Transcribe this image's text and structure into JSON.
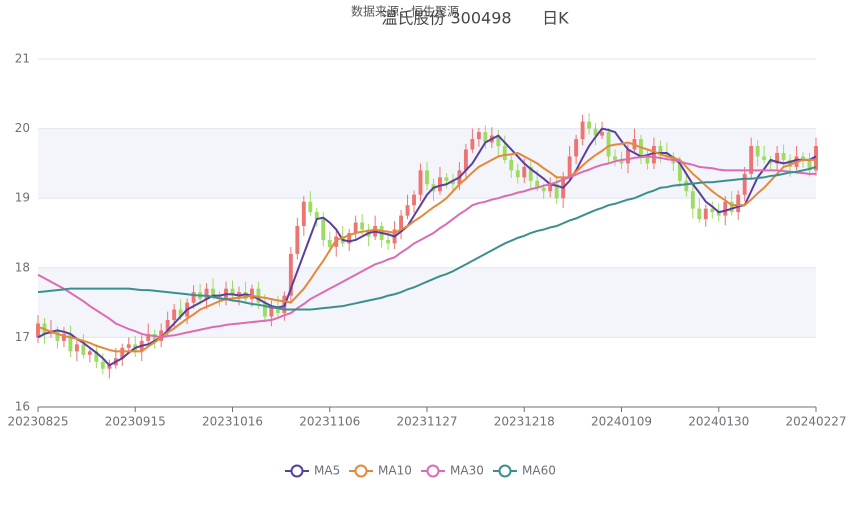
{
  "chart_data": {
    "type": "candlestick",
    "title": "温氏股份 300498      日K",
    "subtitle": "数据来源：恒生聚源",
    "categories": [
      "20230825",
      null,
      null,
      null,
      null,
      null,
      null,
      null,
      null,
      null,
      null,
      null,
      null,
      null,
      null,
      "20230915",
      null,
      null,
      null,
      null,
      null,
      null,
      null,
      null,
      null,
      null,
      null,
      null,
      null,
      null,
      "20231016",
      null,
      null,
      null,
      null,
      null,
      null,
      null,
      null,
      null,
      null,
      null,
      null,
      null,
      null,
      "20231106",
      null,
      null,
      null,
      null,
      null,
      null,
      null,
      null,
      null,
      null,
      null,
      null,
      null,
      null,
      "20231127",
      null,
      null,
      null,
      null,
      null,
      null,
      null,
      null,
      null,
      null,
      null,
      null,
      null,
      null,
      "20231218",
      null,
      null,
      null,
      null,
      null,
      null,
      null,
      null,
      null,
      null,
      null,
      null,
      null,
      null,
      "20240109",
      null,
      null,
      null,
      null,
      null,
      null,
      null,
      null,
      null,
      null,
      null,
      null,
      null,
      null,
      "20240130",
      null,
      null,
      null,
      null,
      null,
      null,
      null,
      null,
      null,
      null,
      null,
      null,
      null,
      null,
      "20240227"
    ],
    "open": [
      17.0,
      17.2,
      17.05,
      17.1,
      16.95,
      17.05,
      16.8,
      16.9,
      16.75,
      16.8,
      16.65,
      16.55,
      16.6,
      16.7,
      16.85,
      16.9,
      16.8,
      16.95,
      17.05,
      16.95,
      17.1,
      17.25,
      17.4,
      17.3,
      17.5,
      17.65,
      17.55,
      17.7,
      17.6,
      17.55,
      17.7,
      17.6,
      17.65,
      17.55,
      17.7,
      17.5,
      17.3,
      17.45,
      17.35,
      17.6,
      18.2,
      18.6,
      18.95,
      18.8,
      18.7,
      18.4,
      18.3,
      18.45,
      18.35,
      18.5,
      18.65,
      18.55,
      18.45,
      18.6,
      18.4,
      18.35,
      18.55,
      18.75,
      18.9,
      19.05,
      19.4,
      19.2,
      19.1,
      19.3,
      19.25,
      19.2,
      19.4,
      19.7,
      19.85,
      19.95,
      19.8,
      19.9,
      19.75,
      19.55,
      19.4,
      19.3,
      19.45,
      19.25,
      19.15,
      19.1,
      19.2,
      19.0,
      19.3,
      19.6,
      19.85,
      20.1,
      20.0,
      19.9,
      19.95,
      19.6,
      19.55,
      19.5,
      19.7,
      19.85,
      19.6,
      19.5,
      19.75,
      19.65,
      19.6,
      19.5,
      19.25,
      19.1,
      18.85,
      18.7,
      18.85,
      18.8,
      18.75,
      18.95,
      18.8,
      19.05,
      19.35,
      19.75,
      19.6,
      19.55,
      19.5,
      19.65,
      19.55,
      19.45,
      19.6,
      19.55,
      19.4
    ],
    "close": [
      17.2,
      17.05,
      17.1,
      16.95,
      17.05,
      16.8,
      16.9,
      16.75,
      16.8,
      16.65,
      16.55,
      16.6,
      16.7,
      16.85,
      16.9,
      16.8,
      16.95,
      17.05,
      16.95,
      17.1,
      17.25,
      17.4,
      17.3,
      17.5,
      17.65,
      17.55,
      17.7,
      17.6,
      17.55,
      17.7,
      17.6,
      17.65,
      17.55,
      17.7,
      17.5,
      17.3,
      17.45,
      17.35,
      17.6,
      18.2,
      18.6,
      18.95,
      18.8,
      18.7,
      18.4,
      18.3,
      18.45,
      18.35,
      18.5,
      18.65,
      18.55,
      18.45,
      18.6,
      18.4,
      18.35,
      18.55,
      18.75,
      18.9,
      19.05,
      19.4,
      19.2,
      19.1,
      19.3,
      19.25,
      19.2,
      19.4,
      19.7,
      19.85,
      19.95,
      19.8,
      19.9,
      19.75,
      19.55,
      19.4,
      19.3,
      19.45,
      19.25,
      19.15,
      19.1,
      19.2,
      19.0,
      19.3,
      19.6,
      19.85,
      20.1,
      20.0,
      19.9,
      19.95,
      19.6,
      19.55,
      19.5,
      19.7,
      19.85,
      19.6,
      19.5,
      19.75,
      19.65,
      19.6,
      19.5,
      19.25,
      19.1,
      18.85,
      18.7,
      18.85,
      18.8,
      18.75,
      18.95,
      18.8,
      19.05,
      19.35,
      19.75,
      19.6,
      19.55,
      19.5,
      19.65,
      19.55,
      19.45,
      19.6,
      19.55,
      19.4,
      19.75
    ],
    "low": [
      16.92,
      16.91,
      17.0,
      16.84,
      16.86,
      16.72,
      16.66,
      16.7,
      16.64,
      16.56,
      16.47,
      16.41,
      16.55,
      16.59,
      16.76,
      16.72,
      16.66,
      16.9,
      16.84,
      16.86,
      17.02,
      17.11,
      17.25,
      17.19,
      17.41,
      17.47,
      17.41,
      17.55,
      17.44,
      17.46,
      17.52,
      17.46,
      17.5,
      17.44,
      17.41,
      17.22,
      17.16,
      17.3,
      17.24,
      17.51,
      18.12,
      18.46,
      18.75,
      18.59,
      18.31,
      18.22,
      18.16,
      18.3,
      18.24,
      18.41,
      18.47,
      18.31,
      18.4,
      18.29,
      18.26,
      18.27,
      18.41,
      18.7,
      18.79,
      18.96,
      19.12,
      18.96,
      19.05,
      19.14,
      19.11,
      19.12,
      19.26,
      19.65,
      19.74,
      19.71,
      19.72,
      19.61,
      19.5,
      19.29,
      19.21,
      19.22,
      19.11,
      19.1,
      18.99,
      19.01,
      18.92,
      18.86,
      19.25,
      19.49,
      19.76,
      19.92,
      19.76,
      19.85,
      19.49,
      19.46,
      19.42,
      19.36,
      19.65,
      19.49,
      19.41,
      19.42,
      19.51,
      19.55,
      19.39,
      19.16,
      19.02,
      18.71,
      18.65,
      18.59,
      18.71,
      18.67,
      18.61,
      18.75,
      18.69,
      18.96,
      19.27,
      19.46,
      19.5,
      19.39,
      19.41,
      19.47,
      19.31,
      19.4,
      19.44,
      19.31,
      19.32
    ],
    "high": [
      17.32,
      17.28,
      17.25,
      17.16,
      17.15,
      17.17,
      16.98,
      17.05,
      16.86,
      16.9,
      16.77,
      16.68,
      16.85,
      16.91,
      17.0,
      17.02,
      17.03,
      17.2,
      17.11,
      17.2,
      17.37,
      17.48,
      17.55,
      17.56,
      17.75,
      17.77,
      17.78,
      17.85,
      17.66,
      17.8,
      17.82,
      17.73,
      17.8,
      17.76,
      17.8,
      17.62,
      17.53,
      17.6,
      17.66,
      18.3,
      18.72,
      19.03,
      19.1,
      18.86,
      18.8,
      18.52,
      18.53,
      18.6,
      18.56,
      18.75,
      18.77,
      18.63,
      18.75,
      18.66,
      18.5,
      18.67,
      18.83,
      19.05,
      19.11,
      19.5,
      19.52,
      19.28,
      19.45,
      19.36,
      19.35,
      19.52,
      19.78,
      20.0,
      20.01,
      20.05,
      20.02,
      19.98,
      19.9,
      19.61,
      19.5,
      19.57,
      19.53,
      19.4,
      19.21,
      19.3,
      19.32,
      19.38,
      19.75,
      19.91,
      20.2,
      20.22,
      20.08,
      20.1,
      20.01,
      19.7,
      19.67,
      19.78,
      20.0,
      19.91,
      19.7,
      19.87,
      19.83,
      19.8,
      19.66,
      19.6,
      19.37,
      19.18,
      19.0,
      18.91,
      18.95,
      18.92,
      19.03,
      19.1,
      19.11,
      19.45,
      19.87,
      19.83,
      19.75,
      19.61,
      19.75,
      19.77,
      19.63,
      19.75,
      19.66,
      19.65,
      19.87
    ],
    "up_color": "#ee7373",
    "down_color": "#9ddb63",
    "series": [
      {
        "name": "MA5",
        "color": "#5b3f9e",
        "values": [
          17.0,
          17.05,
          17.08,
          17.1,
          17.08,
          17.05,
          16.98,
          16.92,
          16.85,
          16.78,
          16.7,
          16.6,
          16.65,
          16.7,
          16.78,
          16.85,
          16.88,
          16.9,
          16.95,
          17.0,
          17.1,
          17.2,
          17.3,
          17.4,
          17.45,
          17.5,
          17.55,
          17.6,
          17.6,
          17.62,
          17.62,
          17.6,
          17.62,
          17.6,
          17.55,
          17.5,
          17.45,
          17.43,
          17.45,
          17.7,
          17.95,
          18.2,
          18.45,
          18.7,
          18.72,
          18.65,
          18.55,
          18.4,
          18.38,
          18.4,
          18.45,
          18.5,
          18.52,
          18.5,
          18.48,
          18.45,
          18.52,
          18.6,
          18.75,
          18.9,
          19.05,
          19.15,
          19.18,
          19.2,
          19.25,
          19.3,
          19.4,
          19.5,
          19.65,
          19.8,
          19.85,
          19.9,
          19.8,
          19.7,
          19.6,
          19.5,
          19.42,
          19.35,
          19.28,
          19.2,
          19.18,
          19.15,
          19.25,
          19.4,
          19.58,
          19.75,
          19.88,
          20.0,
          19.98,
          19.95,
          19.82,
          19.7,
          19.65,
          19.6,
          19.62,
          19.65,
          19.65,
          19.65,
          19.58,
          19.5,
          19.35,
          19.2,
          19.08,
          18.95,
          18.88,
          18.8,
          18.82,
          18.85,
          18.88,
          18.9,
          19.1,
          19.3,
          19.42,
          19.55,
          19.52,
          19.5,
          19.52,
          19.55,
          19.55,
          19.55,
          19.6
        ]
      },
      {
        "name": "MA10",
        "color": "#e5883a",
        "values": [
          17.15,
          17.12,
          17.08,
          17.05,
          17.02,
          17.0,
          16.98,
          16.95,
          16.92,
          16.88,
          16.85,
          16.82,
          16.8,
          16.8,
          16.8,
          16.8,
          16.8,
          16.87,
          16.93,
          17.0,
          17.07,
          17.13,
          17.2,
          17.27,
          17.33,
          17.4,
          17.44,
          17.48,
          17.52,
          17.55,
          17.56,
          17.57,
          17.58,
          17.6,
          17.58,
          17.57,
          17.55,
          17.53,
          17.52,
          17.5,
          17.6,
          17.7,
          17.83,
          17.97,
          18.1,
          18.25,
          18.4,
          18.43,
          18.47,
          18.5,
          18.52,
          18.53,
          18.55,
          18.53,
          18.52,
          18.5,
          18.55,
          18.6,
          18.67,
          18.73,
          18.8,
          18.87,
          18.93,
          19.0,
          19.1,
          19.2,
          19.28,
          19.37,
          19.45,
          19.5,
          19.55,
          19.6,
          19.62,
          19.63,
          19.65,
          19.6,
          19.55,
          19.5,
          19.43,
          19.37,
          19.3,
          19.3,
          19.3,
          19.38,
          19.47,
          19.55,
          19.62,
          19.68,
          19.75,
          19.77,
          19.78,
          19.8,
          19.77,
          19.73,
          19.7,
          19.67,
          19.63,
          19.6,
          19.58,
          19.55,
          19.45,
          19.35,
          19.27,
          19.18,
          19.1,
          19.03,
          18.97,
          18.9,
          18.9,
          18.9,
          18.98,
          19.07,
          19.15,
          19.25,
          19.35,
          19.45,
          19.48,
          19.52,
          19.55,
          19.55,
          19.55
        ]
      },
      {
        "name": "MA30",
        "color": "#db6cb2",
        "values": [
          17.9,
          17.85,
          17.8,
          17.75,
          17.7,
          17.64,
          17.58,
          17.52,
          17.45,
          17.39,
          17.33,
          17.27,
          17.2,
          17.16,
          17.12,
          17.09,
          17.05,
          17.03,
          17.02,
          17.0,
          17.02,
          17.03,
          17.05,
          17.07,
          17.09,
          17.11,
          17.13,
          17.15,
          17.16,
          17.18,
          17.19,
          17.2,
          17.21,
          17.22,
          17.23,
          17.24,
          17.25,
          17.28,
          17.32,
          17.35,
          17.42,
          17.48,
          17.55,
          17.6,
          17.65,
          17.7,
          17.75,
          17.8,
          17.85,
          17.9,
          17.95,
          18.0,
          18.05,
          18.08,
          18.12,
          18.15,
          18.22,
          18.28,
          18.35,
          18.4,
          18.45,
          18.5,
          18.57,
          18.63,
          18.7,
          18.77,
          18.83,
          18.9,
          18.93,
          18.95,
          18.98,
          19.0,
          19.03,
          19.05,
          19.08,
          19.1,
          19.13,
          19.15,
          19.18,
          19.2,
          19.23,
          19.27,
          19.3,
          19.34,
          19.38,
          19.41,
          19.45,
          19.48,
          19.5,
          19.53,
          19.55,
          19.56,
          19.58,
          19.59,
          19.6,
          19.59,
          19.58,
          19.56,
          19.55,
          19.53,
          19.5,
          19.48,
          19.45,
          19.44,
          19.43,
          19.41,
          19.4,
          19.4,
          19.4,
          19.4,
          19.4,
          19.4,
          19.4,
          19.4,
          19.4,
          19.39,
          19.38,
          19.37,
          19.36,
          19.35,
          19.35
        ]
      },
      {
        "name": "MA60",
        "color": "#3b8f8e",
        "values": [
          17.65,
          17.66,
          17.67,
          17.68,
          17.69,
          17.7,
          17.7,
          17.7,
          17.7,
          17.7,
          17.7,
          17.7,
          17.7,
          17.7,
          17.7,
          17.69,
          17.68,
          17.68,
          17.67,
          17.66,
          17.65,
          17.64,
          17.63,
          17.62,
          17.61,
          17.6,
          17.6,
          17.58,
          17.56,
          17.55,
          17.53,
          17.52,
          17.5,
          17.48,
          17.47,
          17.45,
          17.43,
          17.42,
          17.4,
          17.4,
          17.4,
          17.4,
          17.4,
          17.41,
          17.42,
          17.43,
          17.44,
          17.45,
          17.47,
          17.49,
          17.51,
          17.53,
          17.55,
          17.57,
          17.6,
          17.62,
          17.65,
          17.69,
          17.72,
          17.76,
          17.8,
          17.84,
          17.88,
          17.91,
          17.95,
          18.0,
          18.05,
          18.1,
          18.15,
          18.2,
          18.25,
          18.3,
          18.35,
          18.39,
          18.43,
          18.46,
          18.5,
          18.53,
          18.55,
          18.58,
          18.6,
          18.64,
          18.68,
          18.71,
          18.75,
          18.79,
          18.83,
          18.86,
          18.9,
          18.92,
          18.95,
          18.98,
          19.0,
          19.04,
          19.08,
          19.11,
          19.15,
          19.16,
          19.18,
          19.19,
          19.2,
          19.21,
          19.22,
          19.23,
          19.23,
          19.24,
          19.25,
          19.26,
          19.27,
          19.28,
          19.28,
          19.29,
          19.3,
          19.32,
          19.33,
          19.35,
          19.37,
          19.38,
          19.4,
          19.42,
          19.45
        ]
      }
    ],
    "ylim": [
      16,
      21
    ],
    "yticks": [
      16,
      17,
      18,
      19,
      20,
      21
    ],
    "grid": true,
    "split_area": true,
    "legend": "bottom"
  }
}
